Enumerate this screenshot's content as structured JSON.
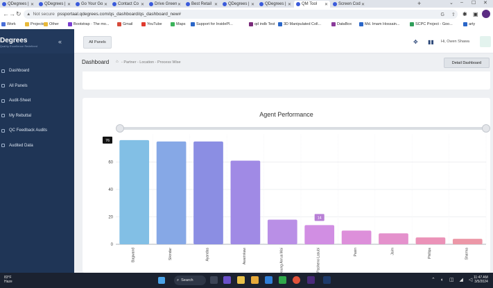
{
  "browser": {
    "tabs": [
      {
        "label": "QDegrees |"
      },
      {
        "label": "QDegrees |"
      },
      {
        "label": "Go Your Go"
      },
      {
        "label": "Contact Co"
      },
      {
        "label": "Drive Green"
      },
      {
        "label": "Best Retail"
      },
      {
        "label": "QDegrees |"
      },
      {
        "label": "QDegrees |"
      },
      {
        "label": "QM Tool"
      },
      {
        "label": "Screen Cod"
      }
    ],
    "address": {
      "security_label": "Not secure",
      "url": "pssportaal.qdegrees.com/qs_dashboard/qs_dashboard_new#"
    },
    "bookmarks": [
      {
        "label": "Work",
        "color": "#4a6fd8"
      },
      {
        "label": "Projects",
        "color": "#e8b93a"
      },
      {
        "label": "Other",
        "color": "#e8b93a"
      },
      {
        "label": "Bootstrap · The mo...",
        "color": "#7a3fd0"
      },
      {
        "label": "Gmail",
        "color": "#d64a3a"
      },
      {
        "label": "YouTube",
        "color": "#e03a2e"
      },
      {
        "label": "Maps",
        "color": "#3bb35a"
      },
      {
        "label": "Support for InsidePl...",
        "color": "#2a66c8"
      },
      {
        "label": "qd indb Test",
        "color": "#7a2a7a"
      },
      {
        "label": "3D Manipulated Coll...",
        "color": "#2a66c8"
      },
      {
        "label": "DataBox",
        "color": "#8a3a9a"
      },
      {
        "label": "Md. Imam Hossain...",
        "color": "#2a66c8"
      },
      {
        "label": "SCPC Project - Goo...",
        "color": "#2f9e5a"
      },
      {
        "label": "arty",
        "color": "#2a66c8"
      }
    ]
  },
  "app": {
    "logo_text": "Degrees",
    "logo_sub": "Quality Excellence Redefined",
    "collapse_glyph": "«",
    "sidebar": [
      {
        "label": "Dashboard"
      },
      {
        "label": "All Panels"
      },
      {
        "label": "Audit-Sheet"
      },
      {
        "label": "My Rebuttal"
      },
      {
        "label": "QC Feedback Audits"
      },
      {
        "label": "Audited Data"
      }
    ],
    "topbar": {
      "all_panels_label": "All Panels",
      "user_name": "Hi, Owen Shawa"
    },
    "breadcrumb": {
      "title": "Dashboard",
      "path": "- Partner - Location - Process Wise"
    },
    "detail_dashboard_label": "Detail Dashboard"
  },
  "chart_data": {
    "type": "bar",
    "title": "Agent Performance",
    "categories": [
      "Bagwand",
      "Sikindar",
      "Ayandas",
      "Awarinkaw",
      "Dayoung Anrua Mai",
      "Pasheno Lasubi",
      "Pasin",
      "Jaim",
      "Phillips",
      "Sharma"
    ],
    "values": [
      76,
      75,
      75,
      61,
      18,
      14,
      10,
      8,
      5,
      4
    ],
    "ylim": [
      0,
      80
    ],
    "yticks": [
      0,
      20,
      40,
      60
    ],
    "colors": [
      "#82bfe5",
      "#86a8e6",
      "#8b8ee3",
      "#a08ae5",
      "#b98fe6",
      "#d18ee3",
      "#dd8fda",
      "#e491cc",
      "#eb92b8",
      "#ec97a7"
    ],
    "tooltips": [
      {
        "category_index": 0,
        "value_label": "76",
        "style": "dark"
      },
      {
        "category_index": 5,
        "value_label": "14",
        "style": "purple"
      }
    ],
    "grid": true
  },
  "taskbar": {
    "weather_temp": "83°F",
    "weather_desc": "Haze",
    "search_label": "Search",
    "time": "11:47 AM",
    "date": "3/5/2024"
  }
}
